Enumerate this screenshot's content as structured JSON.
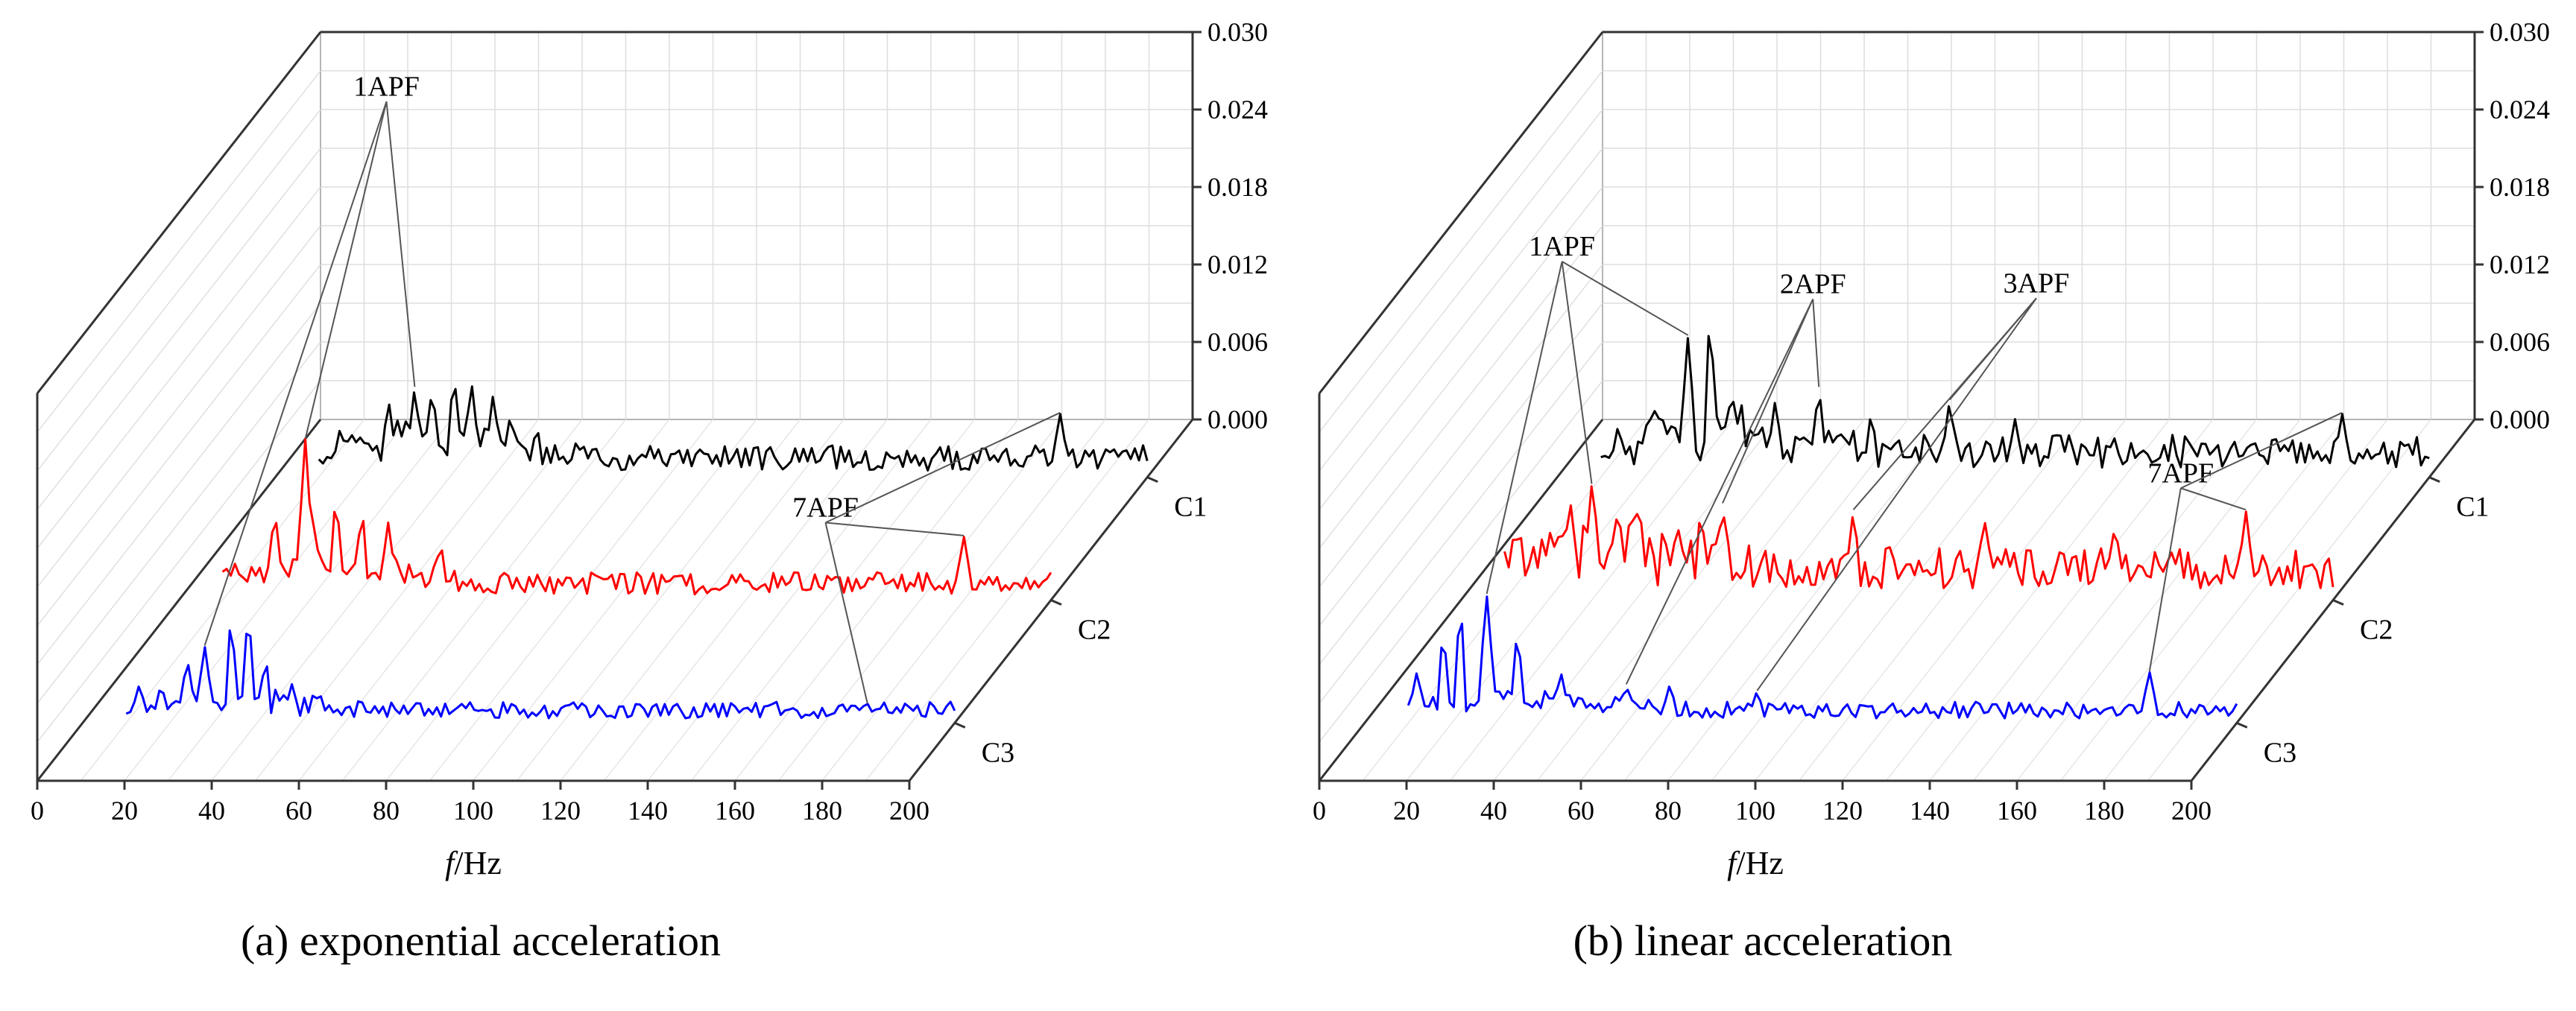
{
  "figure": {
    "captions": [
      "(a) exponential acceleration",
      "(b) linear acceleration"
    ]
  },
  "chart_data": [
    {
      "type": "line",
      "panel": "(a)",
      "title": "(a) exponential acceleration",
      "xlabel_italic": "f",
      "xlabel_rest": "/Hz",
      "zlabel": "",
      "xlim": [
        0,
        200
      ],
      "ylim": [
        0,
        0.03
      ],
      "x_ticks": [
        "0",
        "20",
        "40",
        "60",
        "80",
        "100",
        "120",
        "140",
        "160",
        "180",
        "200"
      ],
      "y_ticks": [
        "0.000",
        "0.006",
        "0.012",
        "0.018",
        "0.024",
        "0.030"
      ],
      "conditions": [
        "C1",
        "C2",
        "C3"
      ],
      "series": [
        {
          "name": "C1",
          "color": "#000000",
          "x_range": [
            10,
            200
          ],
          "base_level": 0.0015,
          "peaks": [
            [
              15,
              0.004
            ],
            [
              26,
              0.006
            ],
            [
              32,
              0.007
            ],
            [
              36,
              0.007
            ],
            [
              41,
              0.008
            ],
            [
              45,
              0.0075
            ],
            [
              50,
              0.0065
            ],
            [
              54,
              0.005
            ],
            [
              60,
              0.004
            ],
            [
              180,
              0.005
            ]
          ]
        },
        {
          "name": "C2",
          "color": "#ff0000",
          "x_range": [
            10,
            200
          ],
          "base_level": 0.0013,
          "peaks": [
            [
              13,
              0.003
            ],
            [
              22,
              0.007
            ],
            [
              29,
              0.0125
            ],
            [
              31,
              0.006
            ],
            [
              36,
              0.008
            ],
            [
              42,
              0.007
            ],
            [
              48,
              0.006
            ],
            [
              60,
              0.0045
            ],
            [
              180,
              0.005
            ]
          ]
        },
        {
          "name": "C3",
          "color": "#0000ff",
          "x_range": [
            10,
            200
          ],
          "base_level": 0.001,
          "peaks": [
            [
              13,
              0.003
            ],
            [
              18,
              0.003
            ],
            [
              24,
              0.005
            ],
            [
              28,
              0.006
            ],
            [
              34,
              0.008
            ],
            [
              38,
              0.0085
            ],
            [
              42,
              0.005
            ],
            [
              48,
              0.003
            ],
            [
              180,
              0.0015
            ]
          ]
        }
      ],
      "annotations": [
        {
          "text": "1APF",
          "x": 30,
          "targets": [
            "C1",
            "C2",
            "C3"
          ]
        },
        {
          "text": "7APF",
          "x": 180,
          "targets": [
            "C1",
            "C2",
            "C3"
          ]
        }
      ]
    },
    {
      "type": "line",
      "panel": "(b)",
      "title": "(b) linear acceleration",
      "xlabel_italic": "f",
      "xlabel_rest": "/Hz",
      "zlabel": "",
      "xlim": [
        0,
        200
      ],
      "ylim": [
        0,
        0.03
      ],
      "x_ticks": [
        "0",
        "20",
        "40",
        "60",
        "80",
        "100",
        "120",
        "140",
        "160",
        "180",
        "200"
      ],
      "y_ticks": [
        "0.000",
        "0.006",
        "0.012",
        "0.018",
        "0.024",
        "0.030"
      ],
      "conditions": [
        "C1",
        "C2",
        "C3"
      ],
      "series": [
        {
          "name": "C1",
          "color": "#000000",
          "x_range": [
            10,
            200
          ],
          "base_level": 0.002,
          "peaks": [
            [
              22,
              0.006
            ],
            [
              30,
              0.011
            ],
            [
              35,
              0.0125
            ],
            [
              40,
              0.007
            ],
            [
              50,
              0.006
            ],
            [
              60,
              0.007
            ],
            [
              72,
              0.005
            ],
            [
              90,
              0.006
            ],
            [
              105,
              0.0045
            ],
            [
              180,
              0.005
            ]
          ]
        },
        {
          "name": "C2",
          "color": "#ff0000",
          "x_range": [
            10,
            200
          ],
          "base_level": 0.0025,
          "peaks": [
            [
              13,
              0.005
            ],
            [
              25,
              0.008
            ],
            [
              30,
              0.009
            ],
            [
              40,
              0.008
            ],
            [
              55,
              0.007
            ],
            [
              60,
              0.0075
            ],
            [
              90,
              0.007
            ],
            [
              120,
              0.0065
            ],
            [
              150,
              0.006
            ],
            [
              180,
              0.007
            ]
          ]
        },
        {
          "name": "C3",
          "color": "#0000ff",
          "x_range": [
            10,
            200
          ],
          "base_level": 0.001,
          "peaks": [
            [
              12,
              0.004
            ],
            [
              18,
              0.007
            ],
            [
              22,
              0.009
            ],
            [
              28,
              0.01
            ],
            [
              35,
              0.007
            ],
            [
              45,
              0.004
            ],
            [
              60,
              0.003
            ],
            [
              70,
              0.003
            ],
            [
              90,
              0.0025
            ],
            [
              180,
              0.004
            ]
          ]
        }
      ],
      "annotations": [
        {
          "text": "1APF",
          "x": 30,
          "targets": [
            "C1",
            "C2",
            "C3"
          ]
        },
        {
          "text": "2APF",
          "x": 60,
          "targets": [
            "C1",
            "C2",
            "C3"
          ]
        },
        {
          "text": "3APF",
          "x": 90,
          "targets": [
            "C1",
            "C2",
            "C3"
          ]
        },
        {
          "text": "7APF",
          "x": 180,
          "targets": [
            "C1",
            "C2",
            "C3"
          ]
        }
      ]
    }
  ]
}
